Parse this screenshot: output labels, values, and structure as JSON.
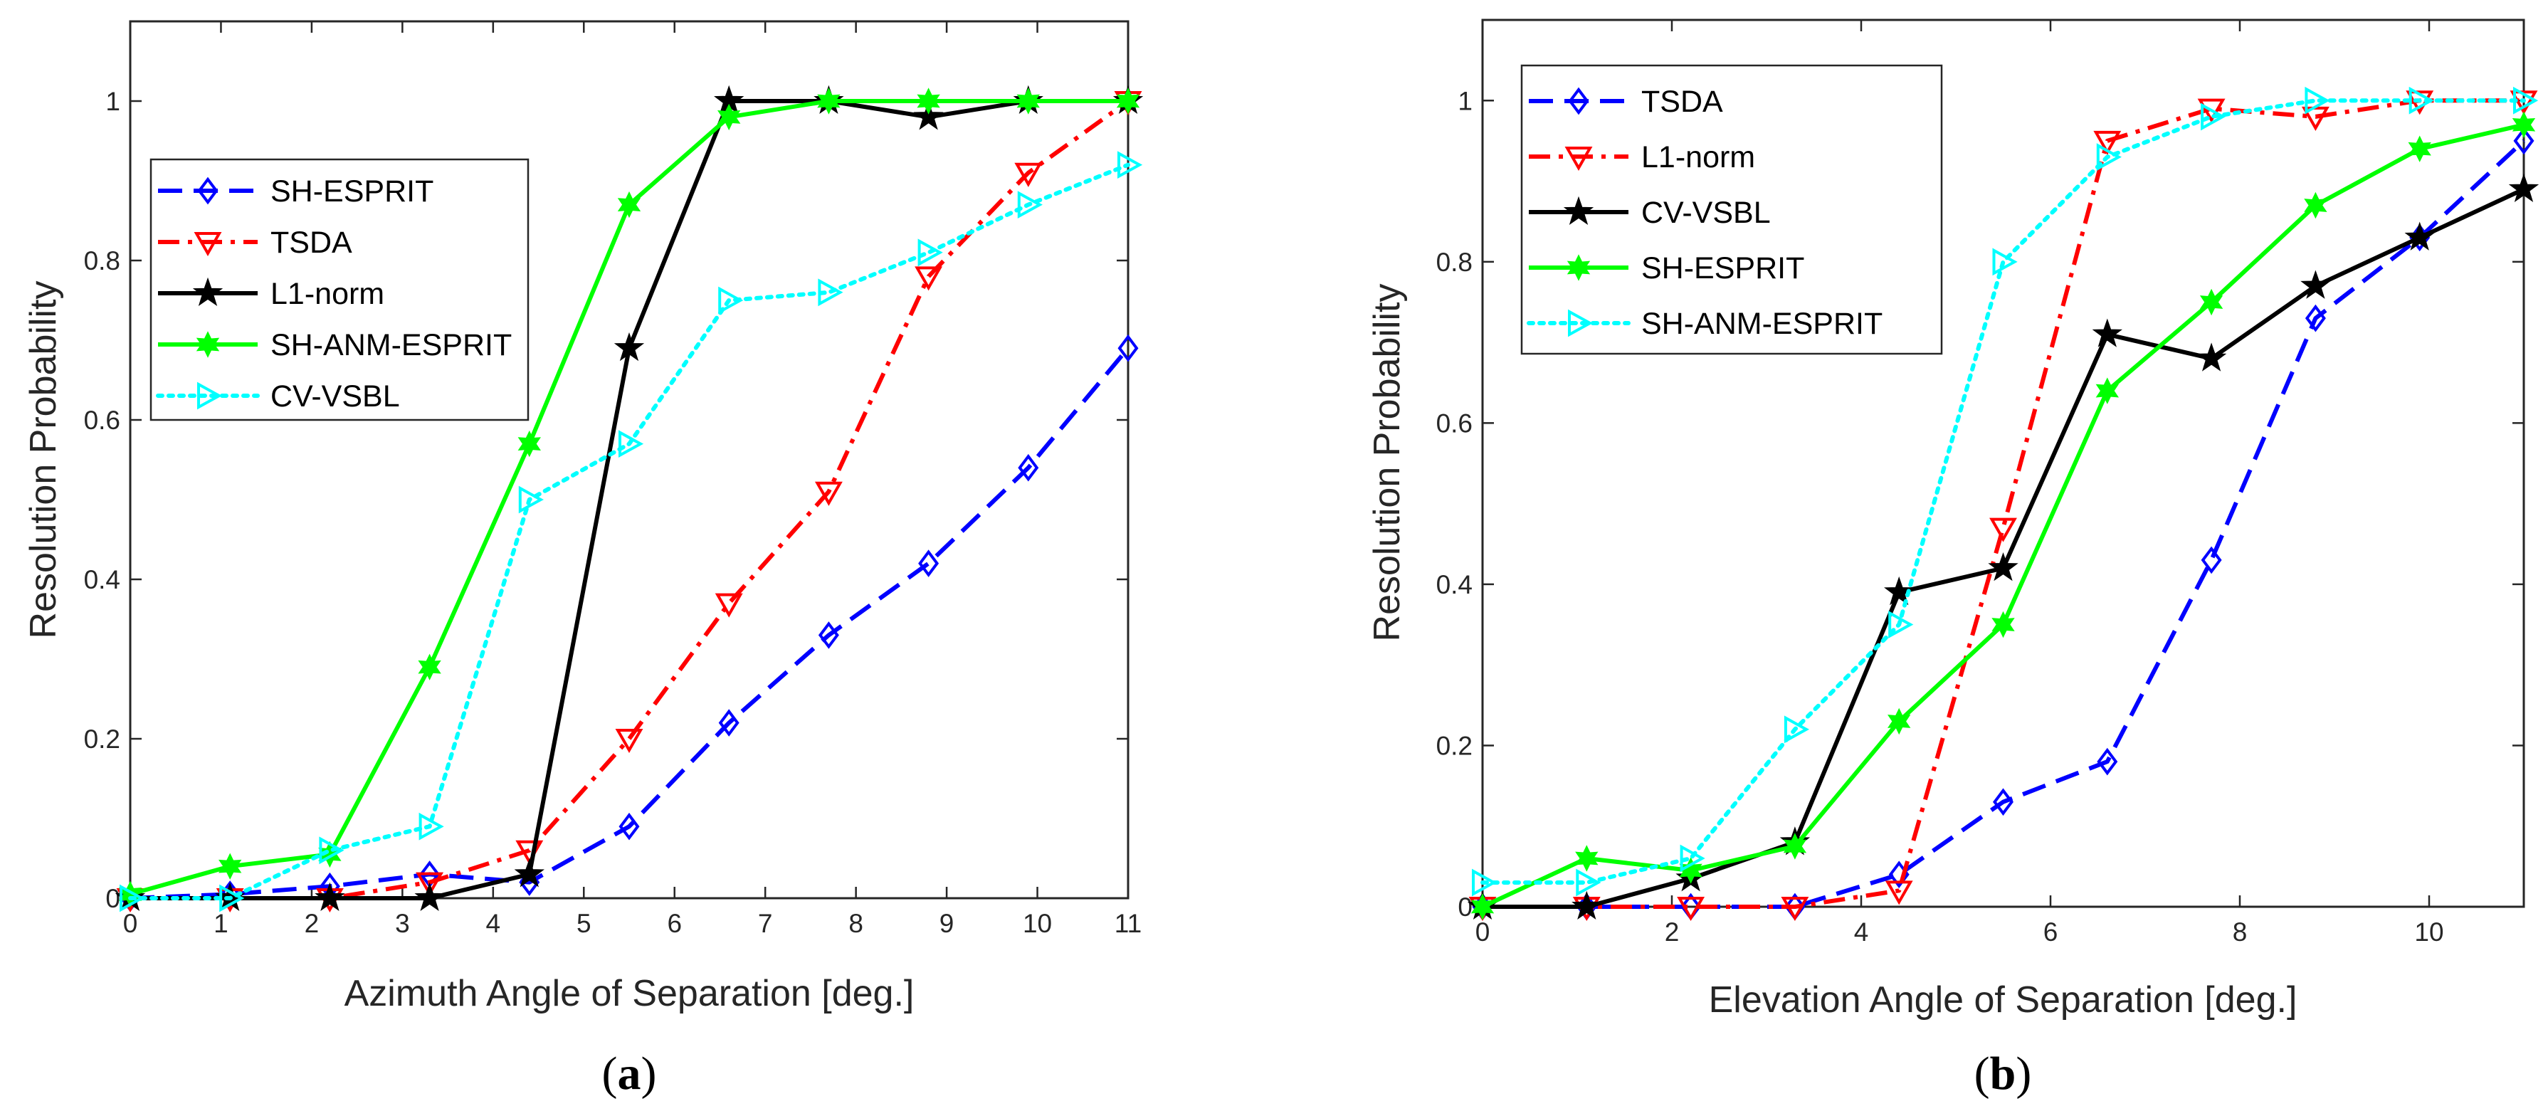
{
  "chart_data": [
    {
      "type": "line",
      "caption_open": "(",
      "caption_letter": "a",
      "caption_close": ")",
      "xlabel": "Azimuth Angle of Separation [deg.]",
      "ylabel": "Resolution Probability",
      "xlim": [
        0,
        11
      ],
      "ylim": [
        0,
        1.1
      ],
      "xticks": [
        0,
        1,
        2,
        3,
        4,
        5,
        6,
        7,
        8,
        9,
        10,
        11
      ],
      "xtick_labels": [
        "0",
        "1",
        "2",
        "3",
        "4",
        "5",
        "6",
        "7",
        "8",
        "9",
        "10",
        "11"
      ],
      "yticks": [
        0,
        0.2,
        0.4,
        0.6,
        0.8,
        1
      ],
      "ytick_labels": [
        "0",
        "0.2",
        "0.4",
        "0.6",
        "0.8",
        "1"
      ],
      "grid": false,
      "legend_position": "upper-left",
      "x": [
        0,
        1.1,
        2.2,
        3.3,
        4.4,
        5.5,
        6.6,
        7.7,
        8.8,
        9.9,
        11
      ],
      "series": [
        {
          "name": "SH-ESPRIT",
          "color": "#0000ff",
          "dash": "long-dash",
          "marker": "diamond",
          "values": [
            0,
            0.005,
            0.015,
            0.03,
            0.02,
            0.09,
            0.22,
            0.33,
            0.42,
            0.54,
            0.69
          ]
        },
        {
          "name": "TSDA",
          "color": "#ff0000",
          "dash": "dash-dot",
          "marker": "triangle-down",
          "values": [
            0,
            0,
            0,
            0.02,
            0.06,
            0.2,
            0.37,
            0.51,
            0.78,
            0.91,
            1.0
          ]
        },
        {
          "name": "L1-norm",
          "color": "#000000",
          "dash": "solid",
          "marker": "pentagram",
          "values": [
            0,
            0,
            0,
            0,
            0.03,
            0.69,
            1.0,
            1.0,
            0.98,
            1.0,
            1.0
          ]
        },
        {
          "name": "SH-ANM-ESPRIT",
          "color": "#00ff00",
          "dash": "solid",
          "marker": "hexagram",
          "values": [
            0.005,
            0.04,
            0.055,
            0.29,
            0.57,
            0.87,
            0.98,
            1.0,
            1.0,
            1.0,
            1.0
          ]
        },
        {
          "name": "CV-VSBL",
          "color": "#00ffff",
          "dash": "dotted",
          "marker": "triangle-right",
          "values": [
            0,
            0,
            0.06,
            0.09,
            0.5,
            0.57,
            0.75,
            0.76,
            0.81,
            0.87,
            0.92
          ]
        }
      ]
    },
    {
      "type": "line",
      "caption_open": "(",
      "caption_letter": "b",
      "caption_close": ")",
      "xlabel": "Elevation Angle of Separation [deg.]",
      "ylabel": "Resolution Probability",
      "xlim": [
        0,
        11
      ],
      "ylim": [
        0,
        1.1
      ],
      "xticks": [
        0,
        2,
        4,
        6,
        8,
        10
      ],
      "xtick_labels": [
        "0",
        "2",
        "4",
        "6",
        "8",
        "10"
      ],
      "yticks": [
        0,
        0.2,
        0.4,
        0.6,
        0.8,
        1
      ],
      "ytick_labels": [
        "0",
        "0.2",
        "0.4",
        "0.6",
        "0.8",
        "1"
      ],
      "grid": false,
      "legend_position": "upper-left",
      "x": [
        0,
        1.1,
        2.2,
        3.3,
        4.4,
        5.5,
        6.6,
        7.7,
        8.8,
        9.9,
        11
      ],
      "series": [
        {
          "name": "TSDA",
          "color": "#0000ff",
          "dash": "long-dash",
          "marker": "diamond",
          "values": [
            0,
            0,
            0,
            0,
            0.04,
            0.13,
            0.18,
            0.43,
            0.73,
            0.83,
            0.95
          ]
        },
        {
          "name": "L1-norm",
          "color": "#ff0000",
          "dash": "dash-dot",
          "marker": "triangle-down",
          "values": [
            0,
            0,
            0,
            0,
            0.02,
            0.47,
            0.95,
            0.99,
            0.98,
            1.0,
            1.0
          ]
        },
        {
          "name": "CV-VSBL",
          "color": "#000000",
          "dash": "solid",
          "marker": "pentagram",
          "values": [
            0,
            0,
            0.035,
            0.08,
            0.39,
            0.42,
            0.71,
            0.68,
            0.77,
            0.83,
            0.89
          ]
        },
        {
          "name": "SH-ESPRIT",
          "color": "#00ff00",
          "dash": "solid",
          "marker": "hexagram",
          "values": [
            0,
            0.06,
            0.045,
            0.075,
            0.23,
            0.35,
            0.64,
            0.75,
            0.87,
            0.94,
            0.97
          ]
        },
        {
          "name": "SH-ANM-ESPRIT",
          "color": "#00ffff",
          "dash": "dotted",
          "marker": "triangle-right",
          "values": [
            0.03,
            0.03,
            0.06,
            0.22,
            0.35,
            0.8,
            0.93,
            0.98,
            1.0,
            1.0,
            1.0
          ]
        }
      ]
    }
  ]
}
